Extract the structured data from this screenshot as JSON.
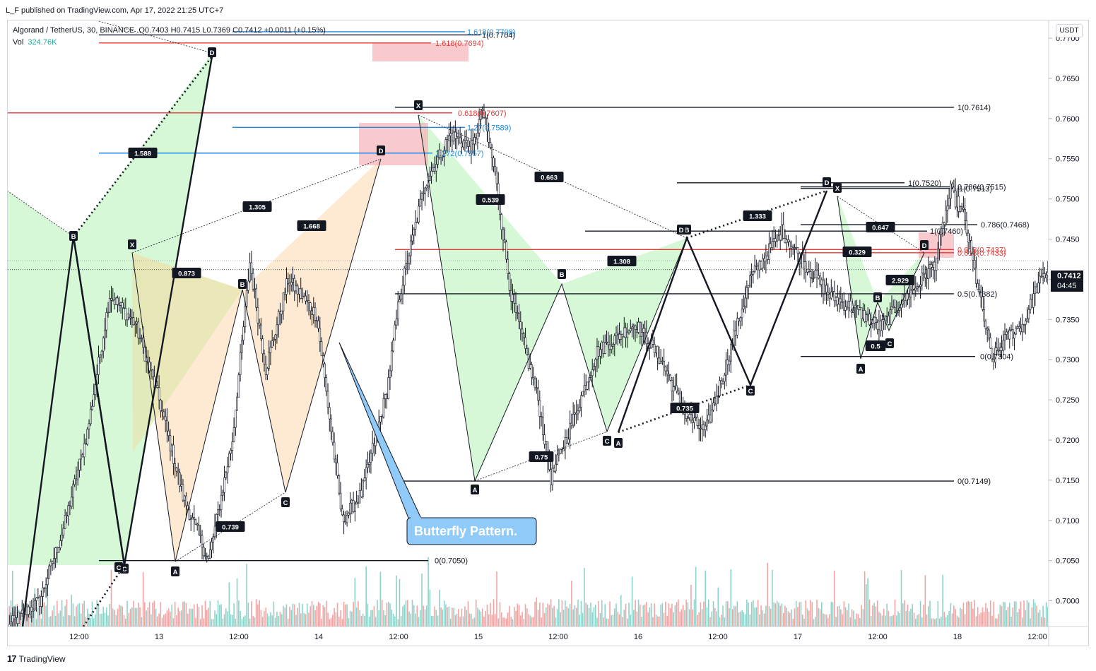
{
  "header": {
    "published": "L_F published on TradingView.com, Apr 17, 2022 21:25 UTC+7"
  },
  "legend": {
    "symbol": "Algorand / TetherUS, 30, BINANCE",
    "ohlc": "O0.7403  H0.7415  L0.7369  C0.7412  +0.0011 (+0.15%)",
    "vol_label": "Vol",
    "vol_value": "324.76K"
  },
  "currency_button": "USDT",
  "last_price": {
    "price": "0.7412",
    "countdown": "04:45"
  },
  "footer": {
    "logo_mark": "17",
    "brand": "TradingView"
  },
  "colors": {
    "up": "#26a69a",
    "down": "#ef5350",
    "vol_up": "#8fd2c9",
    "vol_down": "#f4a3a3",
    "green_fill": "#c8f5c8",
    "orange_fill": "#fde3c4",
    "pink_zone": "#f7b4b8",
    "fib_red": "#e53935",
    "fib_blue": "#1e88e5",
    "callout": "#90caf9"
  },
  "chart_data": {
    "type": "candlestick",
    "title": "Algorand / TetherUS, 30, BINANCE",
    "y_axis": {
      "ticks": [
        "0.7700",
        "0.7650",
        "0.7600",
        "0.7550",
        "0.7500",
        "0.7450",
        "0.7400",
        "0.7350",
        "0.7300",
        "0.7250",
        "0.7200",
        "0.7150",
        "0.7100",
        "0.7050",
        "0.7000"
      ],
      "ylim": [
        0.6968,
        0.7722
      ],
      "position": "right"
    },
    "x_axis": {
      "ticks": [
        "12:00",
        "13",
        "12:00",
        "14",
        "12:00",
        "15",
        "12:00",
        "16",
        "12:00",
        "17",
        "12:00",
        "18",
        "12:00"
      ]
    },
    "bar_count": 300,
    "swing_path": [
      [
        0,
        0.6968
      ],
      [
        20,
        0.7
      ],
      [
        35,
        0.709
      ],
      [
        50,
        0.721
      ],
      [
        64,
        0.738
      ],
      [
        80,
        0.7345
      ],
      [
        95,
        0.725
      ],
      [
        110,
        0.713
      ],
      [
        126,
        0.705
      ],
      [
        141,
        0.72
      ],
      [
        152,
        0.7421
      ],
      [
        162,
        0.7288
      ],
      [
        176,
        0.74
      ],
      [
        194,
        0.7355
      ],
      [
        210,
        0.71
      ],
      [
        222,
        0.7133
      ],
      [
        238,
        0.726
      ],
      [
        246,
        0.738
      ],
      [
        262,
        0.752
      ],
      [
        278,
        0.758
      ],
      [
        292,
        0.7563
      ],
      [
        298,
        0.7612
      ],
      [
        306,
        0.753
      ],
      [
        316,
        0.738
      ],
      [
        333,
        0.725
      ],
      [
        341,
        0.7152
      ],
      [
        354,
        0.722
      ],
      [
        370,
        0.731
      ],
      [
        394,
        0.7345
      ],
      [
        410,
        0.73
      ],
      [
        426,
        0.723
      ],
      [
        438,
        0.721
      ],
      [
        452,
        0.73
      ],
      [
        466,
        0.74
      ],
      [
        486,
        0.746
      ],
      [
        500,
        0.742
      ],
      [
        516,
        0.738
      ],
      [
        534,
        0.736
      ],
      [
        548,
        0.734
      ],
      [
        560,
        0.737
      ],
      [
        570,
        0.739
      ],
      [
        582,
        0.742
      ],
      [
        592,
        0.751
      ],
      [
        600,
        0.748
      ],
      [
        608,
        0.74
      ],
      [
        618,
        0.73
      ],
      [
        628,
        0.733
      ],
      [
        638,
        0.7345
      ],
      [
        646,
        0.739
      ],
      [
        656,
        0.742
      ],
      [
        666,
        0.745
      ],
      [
        674,
        0.7412
      ]
    ],
    "annotations": {
      "callout": "Butterfly Pattern.",
      "fib_labels": [
        {
          "text": "1.618(0.7708)",
          "price": 0.7708,
          "color": "blue"
        },
        {
          "text": "1(0.7704)",
          "price": 0.7704,
          "color": "black"
        },
        {
          "text": "1.618(0.7694)",
          "price": 0.7694,
          "color": "red"
        },
        {
          "text": "1(0.7614)",
          "price": 0.7614,
          "color": "black"
        },
        {
          "text": "0.618(0.7607)",
          "price": 0.7607,
          "color": "red"
        },
        {
          "text": "1.27(0.7589)",
          "price": 0.7589,
          "color": "blue"
        },
        {
          "text": "1.272(0.7557)",
          "price": 0.7557,
          "color": "blue"
        },
        {
          "text": "1(0.7520)",
          "price": 0.752,
          "color": "black"
        },
        {
          "text": "0.786(0.7515)",
          "price": 0.7515,
          "color": "black"
        },
        {
          "text": "1(0.7513)",
          "price": 0.7513,
          "color": "black"
        },
        {
          "text": "0.786(0.7468)",
          "price": 0.7468,
          "color": "black"
        },
        {
          "text": "1(0.7460)",
          "price": 0.746,
          "color": "black"
        },
        {
          "text": "0.618(0.7437)",
          "price": 0.7437,
          "color": "red"
        },
        {
          "text": "0.618(0.7433)",
          "price": 0.7433,
          "color": "red"
        },
        {
          "text": "0.5(0.7382)",
          "price": 0.7382,
          "color": "black"
        },
        {
          "text": "0(0.7304)",
          "price": 0.7304,
          "color": "black"
        },
        {
          "text": "0(0.7149)",
          "price": 0.7149,
          "color": "black"
        },
        {
          "text": "0(0.7050)",
          "price": 0.705,
          "color": "black"
        }
      ],
      "ratio_labels": [
        "1.588",
        "1.305",
        "1.668",
        "0.873",
        "0.739",
        "0.663",
        "0.539",
        "1.333",
        "1.308",
        "0.735",
        "0.75",
        "0.647",
        "0.329",
        "2.929",
        "0.5"
      ],
      "point_labels": [
        "X",
        "A",
        "B",
        "C",
        "D"
      ]
    }
  }
}
